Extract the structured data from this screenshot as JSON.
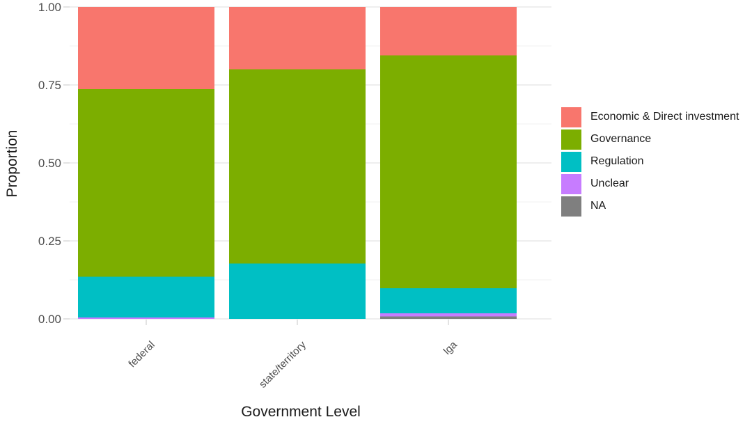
{
  "chart_data": {
    "type": "bar",
    "subtype": "stacked-proportion",
    "title": "",
    "xlabel": "Government Level",
    "ylabel": "Proportion",
    "categories": [
      "federal",
      "state/territory",
      "lga"
    ],
    "series": [
      {
        "name": "Economic & Direct investment",
        "color": "#F8766D",
        "values": [
          0.263,
          0.2,
          0.155
        ]
      },
      {
        "name": "Governance",
        "color": "#7CAE00",
        "values": [
          0.602,
          0.622,
          0.747
        ]
      },
      {
        "name": "Regulation",
        "color": "#00BFC4",
        "values": [
          0.13,
          0.178,
          0.08
        ]
      },
      {
        "name": "Unclear",
        "color": "#C77CFF",
        "values": [
          0.005,
          0.0,
          0.01
        ]
      },
      {
        "name": "NA",
        "color": "#7F7F7F",
        "values": [
          0.0,
          0.0,
          0.008
        ]
      }
    ],
    "stack_order_bottom_to_top": [
      "NA",
      "Unclear",
      "Regulation",
      "Governance",
      "Economic & Direct investment"
    ],
    "ylim": [
      0,
      1
    ],
    "ytick_labels": [
      "0.00",
      "0.25",
      "0.50",
      "0.75",
      "1.00"
    ],
    "minor_gridlines": [
      0.125,
      0.375,
      0.625,
      0.875
    ],
    "grid": true,
    "legend_position": "right",
    "legend_entries": [
      "Economic & Direct investment",
      "Governance",
      "Regulation",
      "Unclear",
      "NA"
    ]
  },
  "theme": {
    "background": "#FFFFFF",
    "grid_major_color": "#E3E3E3",
    "grid_minor_color": "#F1F1F1",
    "tick_label_color": "#4D4D4D",
    "axis_title_color": "#1A1A1A",
    "legend_text_color": "#1A1A1A"
  }
}
